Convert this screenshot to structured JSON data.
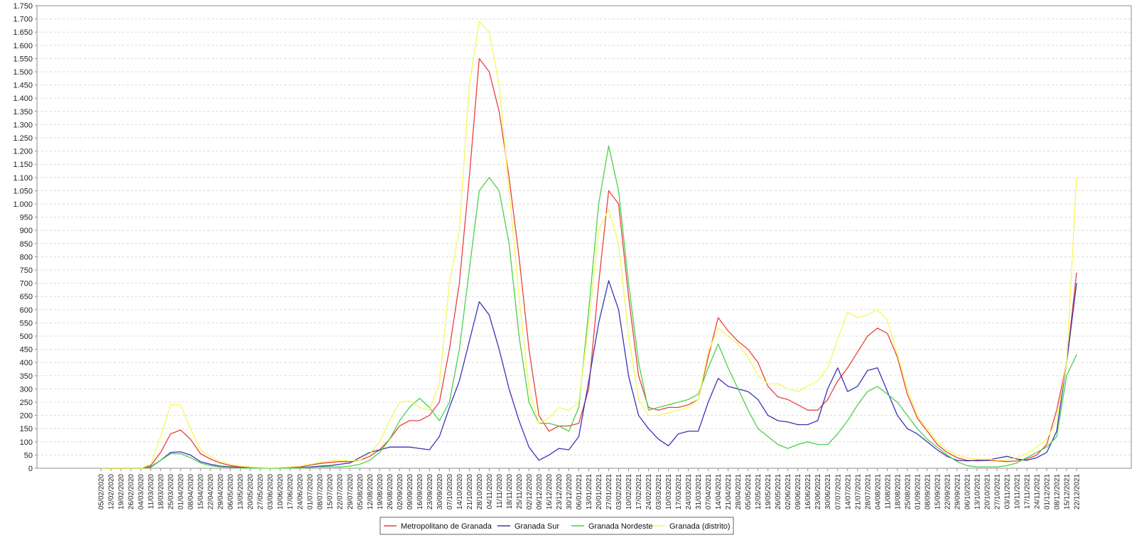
{
  "chart_data": {
    "type": "line",
    "title": "",
    "xlabel": "",
    "ylabel": "",
    "ylim": [
      0,
      1750
    ],
    "yticks": [
      {
        "value": 0,
        "label": "0"
      },
      {
        "value": 50,
        "label": "50"
      },
      {
        "value": 100,
        "label": "100"
      },
      {
        "value": 150,
        "label": "150"
      },
      {
        "value": 200,
        "label": "200"
      },
      {
        "value": 250,
        "label": "250"
      },
      {
        "value": 300,
        "label": "300"
      },
      {
        "value": 350,
        "label": "350"
      },
      {
        "value": 400,
        "label": "400"
      },
      {
        "value": 450,
        "label": "450"
      },
      {
        "value": 500,
        "label": "500"
      },
      {
        "value": 550,
        "label": "550"
      },
      {
        "value": 600,
        "label": "600"
      },
      {
        "value": 650,
        "label": "650"
      },
      {
        "value": 700,
        "label": "700"
      },
      {
        "value": 750,
        "label": "750"
      },
      {
        "value": 800,
        "label": "800"
      },
      {
        "value": 850,
        "label": "850"
      },
      {
        "value": 900,
        "label": "900"
      },
      {
        "value": 950,
        "label": "950"
      },
      {
        "value": 1000,
        "label": "1.000"
      },
      {
        "value": 1050,
        "label": "1.050"
      },
      {
        "value": 1100,
        "label": "1.100"
      },
      {
        "value": 1150,
        "label": "1.150"
      },
      {
        "value": 1200,
        "label": "1.200"
      },
      {
        "value": 1250,
        "label": "1.250"
      },
      {
        "value": 1300,
        "label": "1.300"
      },
      {
        "value": 1350,
        "label": "1.350"
      },
      {
        "value": 1400,
        "label": "1.400"
      },
      {
        "value": 1450,
        "label": "1.450"
      },
      {
        "value": 1500,
        "label": "1.500"
      },
      {
        "value": 1550,
        "label": "1.550"
      },
      {
        "value": 1600,
        "label": "1.600"
      },
      {
        "value": 1650,
        "label": "1.650"
      },
      {
        "value": 1700,
        "label": "1.700"
      },
      {
        "value": 1750,
        "label": "1.750"
      }
    ],
    "x": [
      "05/02/2020",
      "12/02/2020",
      "19/02/2020",
      "26/02/2020",
      "04/03/2020",
      "11/03/2020",
      "18/03/2020",
      "25/03/2020",
      "01/04/2020",
      "08/04/2020",
      "15/04/2020",
      "22/04/2020",
      "29/04/2020",
      "06/05/2020",
      "13/05/2020",
      "20/05/2020",
      "27/05/2020",
      "03/06/2020",
      "10/06/2020",
      "17/06/2020",
      "24/06/2020",
      "01/07/2020",
      "08/07/2020",
      "15/07/2020",
      "22/07/2020",
      "29/07/2020",
      "05/08/2020",
      "12/08/2020",
      "19/08/2020",
      "26/08/2020",
      "02/09/2020",
      "09/09/2020",
      "16/09/2020",
      "23/09/2020",
      "30/09/2020",
      "07/10/2020",
      "14/10/2020",
      "21/10/2020",
      "28/10/2020",
      "04/11/2020",
      "11/11/2020",
      "18/11/2020",
      "25/11/2020",
      "02/12/2020",
      "09/12/2020",
      "16/12/2020",
      "23/12/2020",
      "30/12/2020",
      "06/01/2021",
      "13/01/2021",
      "20/01/2021",
      "27/01/2021",
      "03/02/2021",
      "10/02/2021",
      "17/02/2021",
      "24/02/2021",
      "03/03/2021",
      "10/03/2021",
      "17/03/2021",
      "24/03/2021",
      "31/03/2021",
      "07/04/2021",
      "14/04/2021",
      "21/04/2021",
      "28/04/2021",
      "05/05/2021",
      "12/05/2021",
      "19/05/2021",
      "26/05/2021",
      "02/06/2021",
      "09/06/2021",
      "16/06/2021",
      "23/06/2021",
      "30/06/2021",
      "07/07/2021",
      "14/07/2021",
      "21/07/2021",
      "28/07/2021",
      "04/08/2021",
      "11/08/2021",
      "18/08/2021",
      "25/08/2021",
      "01/09/2021",
      "08/09/2021",
      "15/09/2021",
      "22/09/2021",
      "29/09/2021",
      "06/10/2021",
      "13/10/2021",
      "20/10/2021",
      "27/10/2021",
      "03/11/2021",
      "10/11/2021",
      "17/11/2021",
      "24/11/2021",
      "01/12/2021",
      "08/12/2021",
      "15/12/2021",
      "22/12/2021"
    ],
    "series": [
      {
        "name": "Metropolitano de Granada",
        "color": "#e8413e",
        "values": [
          0,
          0,
          0,
          0,
          0,
          10,
          60,
          130,
          145,
          110,
          55,
          35,
          20,
          10,
          5,
          3,
          2,
          1,
          2,
          3,
          5,
          12,
          18,
          22,
          25,
          25,
          30,
          45,
          70,
          110,
          160,
          180,
          180,
          200,
          250,
          450,
          700,
          1100,
          1550,
          1500,
          1350,
          1100,
          800,
          450,
          200,
          140,
          160,
          160,
          170,
          300,
          700,
          1050,
          1000,
          650,
          350,
          230,
          220,
          230,
          230,
          240,
          260,
          420,
          570,
          520,
          480,
          450,
          400,
          310,
          270,
          260,
          240,
          220,
          220,
          260,
          330,
          380,
          440,
          500,
          530,
          510,
          420,
          280,
          190,
          140,
          90,
          60,
          40,
          30,
          28,
          30,
          28,
          25,
          28,
          35,
          50,
          90,
          220,
          400,
          740
        ]
      },
      {
        "name": "Granada Sur",
        "color": "#3a33b8",
        "values": [
          0,
          0,
          0,
          0,
          0,
          5,
          30,
          60,
          62,
          50,
          25,
          15,
          8,
          5,
          3,
          2,
          1,
          1,
          1,
          2,
          3,
          5,
          8,
          10,
          15,
          20,
          40,
          60,
          70,
          80,
          80,
          80,
          75,
          70,
          120,
          230,
          330,
          480,
          630,
          580,
          450,
          300,
          180,
          80,
          30,
          50,
          75,
          70,
          120,
          330,
          550,
          710,
          600,
          350,
          200,
          150,
          110,
          85,
          130,
          140,
          140,
          250,
          340,
          310,
          300,
          290,
          260,
          200,
          180,
          175,
          165,
          165,
          180,
          300,
          380,
          290,
          310,
          370,
          380,
          290,
          200,
          150,
          130,
          100,
          70,
          45,
          30,
          28,
          30,
          30,
          38,
          45,
          35,
          30,
          40,
          60,
          140,
          400,
          700
        ]
      },
      {
        "name": "Granada Nordeste",
        "color": "#4bd04a",
        "values": [
          0,
          0,
          0,
          0,
          0,
          3,
          30,
          55,
          55,
          40,
          20,
          10,
          5,
          3,
          1,
          1,
          0,
          0,
          0,
          1,
          2,
          3,
          5,
          5,
          5,
          8,
          15,
          30,
          60,
          110,
          180,
          230,
          265,
          230,
          180,
          250,
          450,
          750,
          1050,
          1100,
          1050,
          850,
          500,
          250,
          170,
          170,
          160,
          140,
          230,
          600,
          1000,
          1220,
          1050,
          700,
          400,
          220,
          230,
          240,
          250,
          260,
          280,
          380,
          470,
          380,
          300,
          220,
          150,
          120,
          90,
          75,
          90,
          100,
          90,
          90,
          130,
          180,
          240,
          290,
          310,
          280,
          250,
          200,
          150,
          110,
          80,
          50,
          25,
          10,
          5,
          5,
          5,
          10,
          20,
          40,
          60,
          80,
          120,
          350,
          430
        ]
      },
      {
        "name": "Granada (distrito)",
        "color": "#f7f759",
        "values": [
          0,
          0,
          0,
          0,
          0,
          15,
          120,
          240,
          240,
          150,
          70,
          45,
          25,
          15,
          8,
          5,
          3,
          2,
          3,
          5,
          8,
          15,
          22,
          28,
          30,
          28,
          30,
          55,
          100,
          180,
          250,
          255,
          230,
          220,
          320,
          700,
          900,
          1450,
          1690,
          1650,
          1450,
          1050,
          650,
          300,
          170,
          190,
          230,
          220,
          250,
          550,
          900,
          980,
          850,
          500,
          260,
          200,
          200,
          210,
          220,
          230,
          260,
          440,
          530,
          500,
          470,
          420,
          350,
          320,
          320,
          300,
          290,
          310,
          330,
          380,
          490,
          590,
          570,
          580,
          600,
          560,
          430,
          300,
          200,
          150,
          100,
          70,
          50,
          40,
          35,
          35,
          30,
          30,
          40,
          55,
          80,
          110,
          180,
          400,
          1100
        ]
      }
    ],
    "grid": true,
    "legend_position": "bottom-center"
  }
}
